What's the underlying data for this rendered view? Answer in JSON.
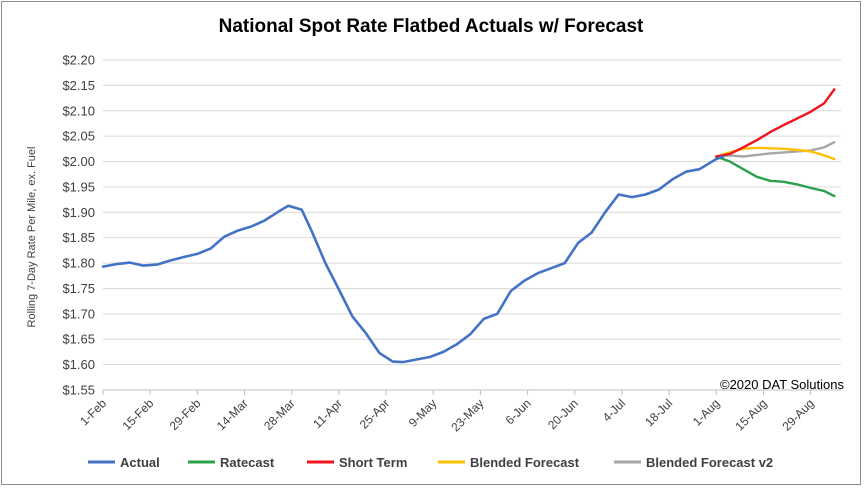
{
  "chart_data": {
    "type": "line",
    "title": "National Spot Rate Flatbed Actuals w/ Forecast",
    "ylabel": "Rolling 7-Day Rate Per Mile, ex. Fuel",
    "xlabel": "",
    "ylim": [
      1.55,
      2.2
    ],
    "y_ticks": [
      "$2.20",
      "$2.15",
      "$2.10",
      "$2.05",
      "$2.00",
      "$1.95",
      "$1.90",
      "$1.85",
      "$1.80",
      "$1.75",
      "$1.70",
      "$1.65",
      "$1.60",
      "$1.55"
    ],
    "x_ticks": [
      "1-Feb",
      "15-Feb",
      "29-Feb",
      "14-Mar",
      "28-Mar",
      "11-Apr",
      "25-Apr",
      "9-May",
      "23-May",
      "6-Jun",
      "20-Jun",
      "4-Jul",
      "18-Jul",
      "1-Aug",
      "15-Aug",
      "29-Aug"
    ],
    "grid": true,
    "legend_position": "bottom",
    "copyright": "©2020 DAT Solutions",
    "series": [
      {
        "name": "Actual",
        "color": "#4472c4",
        "x": [
          "2020-02-01",
          "2020-02-05",
          "2020-02-09",
          "2020-02-13",
          "2020-02-17",
          "2020-02-21",
          "2020-02-25",
          "2020-02-29",
          "2020-03-04",
          "2020-03-08",
          "2020-03-12",
          "2020-03-16",
          "2020-03-20",
          "2020-03-24",
          "2020-03-27",
          "2020-03-31",
          "2020-04-03",
          "2020-04-07",
          "2020-04-11",
          "2020-04-15",
          "2020-04-19",
          "2020-04-23",
          "2020-04-27",
          "2020-04-30",
          "2020-05-04",
          "2020-05-08",
          "2020-05-12",
          "2020-05-16",
          "2020-05-20",
          "2020-05-24",
          "2020-05-28",
          "2020-06-01",
          "2020-06-05",
          "2020-06-09",
          "2020-06-13",
          "2020-06-17",
          "2020-06-21",
          "2020-06-25",
          "2020-06-29",
          "2020-07-03",
          "2020-07-07",
          "2020-07-11",
          "2020-07-15",
          "2020-07-19",
          "2020-07-23",
          "2020-07-27",
          "2020-08-01",
          "2020-08-03"
        ],
        "values": [
          1.793,
          1.798,
          1.801,
          1.795,
          1.797,
          1.805,
          1.812,
          1.818,
          1.829,
          1.852,
          1.864,
          1.872,
          1.884,
          1.901,
          1.913,
          1.905,
          1.862,
          1.8,
          1.748,
          1.695,
          1.662,
          1.623,
          1.606,
          1.605,
          1.61,
          1.615,
          1.625,
          1.64,
          1.66,
          1.69,
          1.7,
          1.745,
          1.765,
          1.78,
          1.79,
          1.8,
          1.84,
          1.86,
          1.9,
          1.935,
          1.93,
          1.935,
          1.945,
          1.965,
          1.98,
          1.985,
          2.005,
          2.01
        ]
      },
      {
        "name": "Ratecast",
        "color": "#2aa14a",
        "x": [
          "2020-08-01",
          "2020-08-05",
          "2020-08-09",
          "2020-08-13",
          "2020-08-17",
          "2020-08-21",
          "2020-08-25",
          "2020-08-29",
          "2020-09-02",
          "2020-09-05"
        ],
        "values": [
          2.01,
          2.0,
          1.985,
          1.97,
          1.962,
          1.96,
          1.955,
          1.948,
          1.942,
          1.932
        ]
      },
      {
        "name": "Short Term",
        "color": "#f0141e",
        "x": [
          "2020-08-01",
          "2020-08-05",
          "2020-08-09",
          "2020-08-13",
          "2020-08-17",
          "2020-08-21",
          "2020-08-25",
          "2020-08-29",
          "2020-09-02",
          "2020-09-05"
        ],
        "values": [
          2.01,
          2.015,
          2.028,
          2.042,
          2.058,
          2.072,
          2.085,
          2.098,
          2.115,
          2.142
        ]
      },
      {
        "name": "Blended Forecast",
        "color": "#ffc000",
        "x": [
          "2020-08-01",
          "2020-08-05",
          "2020-08-09",
          "2020-08-13",
          "2020-08-17",
          "2020-08-21",
          "2020-08-25",
          "2020-08-29",
          "2020-09-02",
          "2020-09-05"
        ],
        "values": [
          2.01,
          2.018,
          2.025,
          2.027,
          2.026,
          2.025,
          2.023,
          2.02,
          2.012,
          2.005
        ]
      },
      {
        "name": "Blended Forecast v2",
        "color": "#a6a6a6",
        "x": [
          "2020-08-01",
          "2020-08-05",
          "2020-08-09",
          "2020-08-13",
          "2020-08-17",
          "2020-08-21",
          "2020-08-25",
          "2020-08-29",
          "2020-09-02",
          "2020-09-05"
        ],
        "values": [
          2.01,
          2.012,
          2.01,
          2.013,
          2.016,
          2.018,
          2.02,
          2.022,
          2.028,
          2.038
        ]
      }
    ]
  }
}
